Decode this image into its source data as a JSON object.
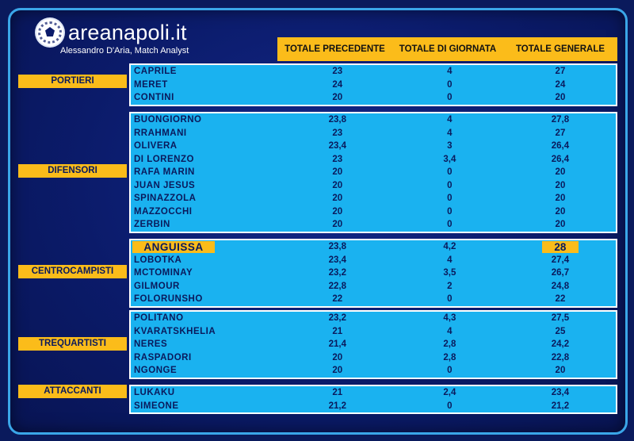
{
  "brand": "areanapoli.it",
  "subtitle": "Alessandro D'Aria, Match Analyst",
  "columns": [
    "TOTALE PRECEDENTE",
    "TOTALE DI GIORNATA",
    "TOTALE GENERALE"
  ],
  "groups": [
    {
      "role": "PORTIERI",
      "players": [
        {
          "name": "CAPRILE",
          "prev": "23",
          "day": "4",
          "total": "27"
        },
        {
          "name": "MERET",
          "prev": "24",
          "day": "0",
          "total": "24"
        },
        {
          "name": "CONTINI",
          "prev": "20",
          "day": "0",
          "total": "20"
        }
      ]
    },
    {
      "role": "DIFENSORI",
      "players": [
        {
          "name": "BUONGIORNO",
          "prev": "23,8",
          "day": "4",
          "total": "27,8"
        },
        {
          "name": "RRAHMANI",
          "prev": "23",
          "day": "4",
          "total": "27"
        },
        {
          "name": "OLIVERA",
          "prev": "23,4",
          "day": "3",
          "total": "26,4"
        },
        {
          "name": "DI LORENZO",
          "prev": "23",
          "day": "3,4",
          "total": "26,4"
        },
        {
          "name": "RAFA MARIN",
          "prev": "20",
          "day": "0",
          "total": "20"
        },
        {
          "name": "JUAN JESUS",
          "prev": "20",
          "day": "0",
          "total": "20"
        },
        {
          "name": "SPINAZZOLA",
          "prev": "20",
          "day": "0",
          "total": "20"
        },
        {
          "name": "MAZZOCCHI",
          "prev": "20",
          "day": "0",
          "total": "20"
        },
        {
          "name": "ZERBIN",
          "prev": "20",
          "day": "0",
          "total": "20"
        }
      ]
    },
    {
      "role": "CENTROCAMPISTI",
      "players": [
        {
          "name": "ANGUISSA",
          "prev": "23,8",
          "day": "4,2",
          "total": "28"
        },
        {
          "name": "LOBOTKA",
          "prev": "23,4",
          "day": "4",
          "total": "27,4"
        },
        {
          "name": "MCTOMINAY",
          "prev": "23,2",
          "day": "3,5",
          "total": "26,7"
        },
        {
          "name": "GILMOUR",
          "prev": "22,8",
          "day": "2",
          "total": "24,8"
        },
        {
          "name": "FOLORUNSHO",
          "prev": "22",
          "day": "0",
          "total": "22"
        }
      ]
    },
    {
      "role": "TREQUARTISTI",
      "players": [
        {
          "name": "POLITANO",
          "prev": "23,2",
          "day": "4,3",
          "total": "27,5"
        },
        {
          "name": "KVARATSKHELIA",
          "prev": "21",
          "day": "4",
          "total": "25"
        },
        {
          "name": "NERES",
          "prev": "21,4",
          "day": "2,8",
          "total": "24,2"
        },
        {
          "name": "RASPADORI",
          "prev": "20",
          "day": "2,8",
          "total": "22,8"
        },
        {
          "name": "NGONGE",
          "prev": "20",
          "day": "0",
          "total": "20"
        }
      ]
    },
    {
      "role": "ATTACCANTI",
      "players": [
        {
          "name": "LUKAKU",
          "prev": "21",
          "day": "2,4",
          "total": "23,4"
        },
        {
          "name": "SIMEONE",
          "prev": "21,2",
          "day": "0",
          "total": "21,2"
        }
      ]
    }
  ]
}
